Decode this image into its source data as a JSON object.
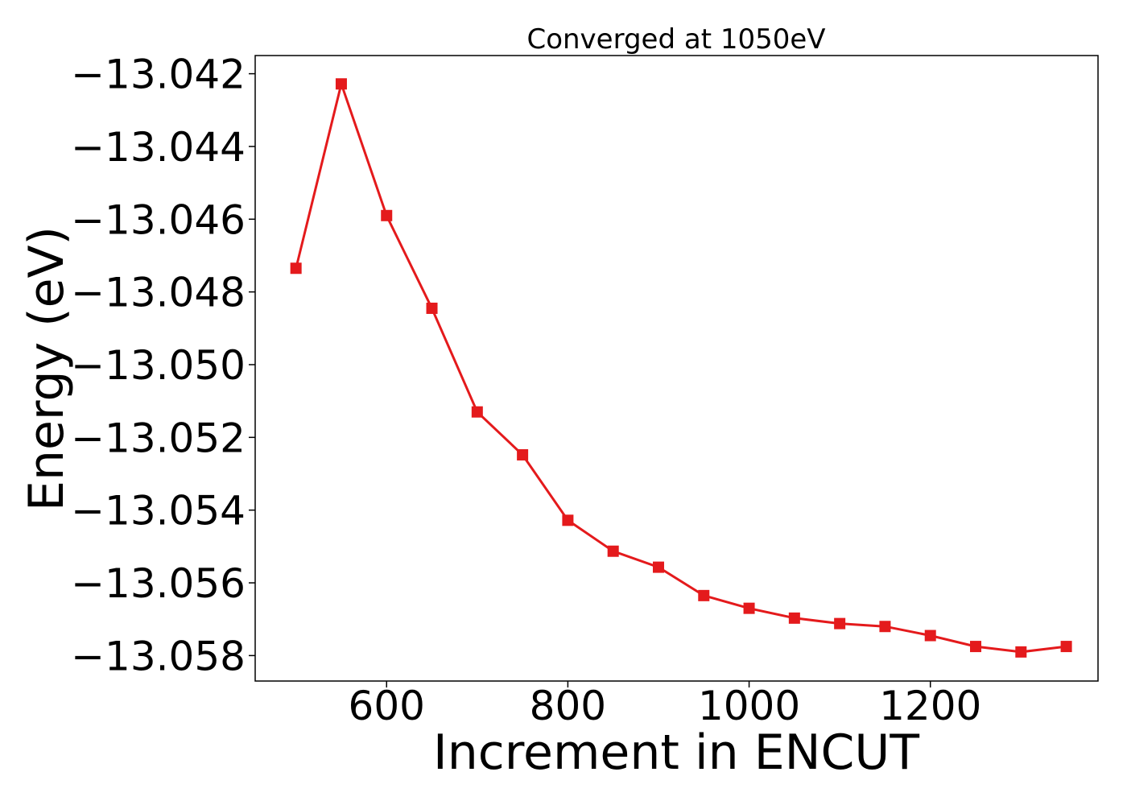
{
  "chart_data": {
    "type": "line",
    "title": "Converged at 1050eV",
    "xlabel": "Increment in ENCUT",
    "ylabel": "Energy (eV)",
    "xlim": [
      455,
      1385
    ],
    "ylim": [
      -13.0587,
      -13.0415
    ],
    "xticks": [
      600,
      800,
      1000,
      1200
    ],
    "xtick_labels": [
      "600",
      "800",
      "1000",
      "1200"
    ],
    "yticks": [
      -13.042,
      -13.044,
      -13.046,
      -13.048,
      -13.05,
      -13.052,
      -13.054,
      -13.056,
      -13.058
    ],
    "ytick_labels": [
      "−13.042",
      "−13.044",
      "−13.046",
      "−13.048",
      "−13.050",
      "−13.052",
      "−13.054",
      "−13.056",
      "−13.058"
    ],
    "grid": false,
    "series": [
      {
        "color": "#e41a1c",
        "marker": "square",
        "x": [
          500,
          550,
          600,
          650,
          700,
          750,
          800,
          850,
          900,
          950,
          1000,
          1050,
          1100,
          1150,
          1200,
          1250,
          1300,
          1350
        ],
        "y": [
          -13.04735,
          -13.04228,
          -13.0459,
          -13.04845,
          -13.0513,
          -13.05248,
          -13.05428,
          -13.05513,
          -13.05557,
          -13.05635,
          -13.0567,
          -13.05697,
          -13.05712,
          -13.0572,
          -13.05745,
          -13.05775,
          -13.0579,
          -13.05775
        ]
      }
    ]
  }
}
